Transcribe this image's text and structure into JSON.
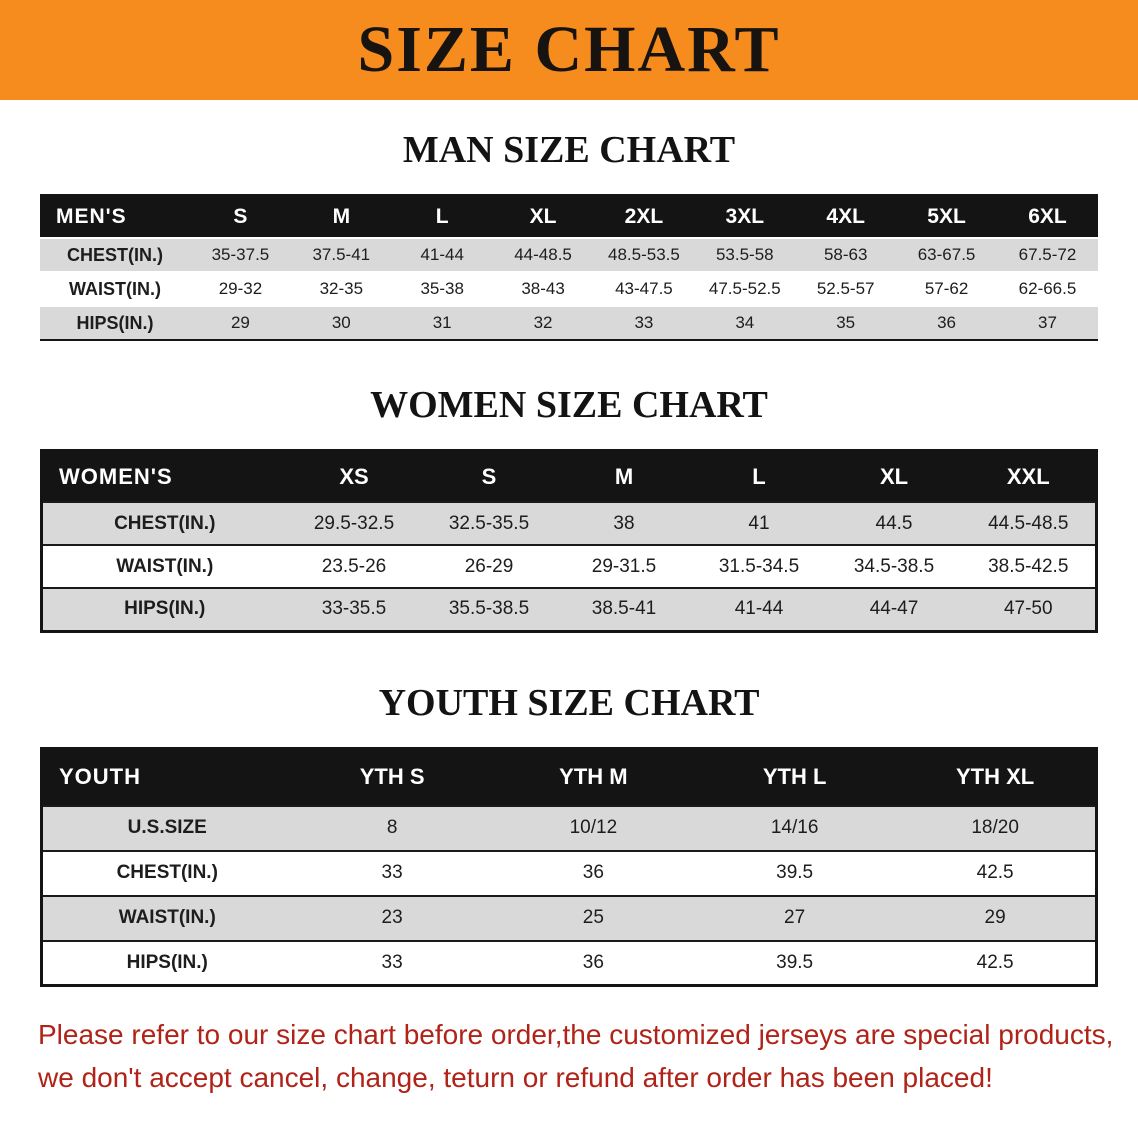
{
  "banner": {
    "title": "SIZE CHART",
    "bg_color": "#f68b1e"
  },
  "men": {
    "heading": "MAN SIZE CHART",
    "header": [
      "MEN'S",
      "S",
      "M",
      "L",
      "XL",
      "2XL",
      "3XL",
      "4XL",
      "5XL",
      "6XL"
    ],
    "rows": [
      {
        "label": "CHEST(IN.)",
        "values": [
          "35-37.5",
          "37.5-41",
          "41-44",
          "44-48.5",
          "48.5-53.5",
          "53.5-58",
          "58-63",
          "63-67.5",
          "67.5-72"
        ]
      },
      {
        "label": "WAIST(IN.)",
        "values": [
          "29-32",
          "32-35",
          "35-38",
          "38-43",
          "43-47.5",
          "47.5-52.5",
          "52.5-57",
          "57-62",
          "62-66.5"
        ]
      },
      {
        "label": "HIPS(IN.)",
        "values": [
          "29",
          "30",
          "31",
          "32",
          "33",
          "34",
          "35",
          "36",
          "37"
        ]
      }
    ]
  },
  "women": {
    "heading": "WOMEN SIZE CHART",
    "header": [
      "WOMEN'S",
      "XS",
      "S",
      "M",
      "L",
      "XL",
      "XXL"
    ],
    "rows": [
      {
        "label": "CHEST(IN.)",
        "values": [
          "29.5-32.5",
          "32.5-35.5",
          "38",
          "41",
          "44.5",
          "44.5-48.5"
        ]
      },
      {
        "label": "WAIST(IN.)",
        "values": [
          "23.5-26",
          "26-29",
          "29-31.5",
          "31.5-34.5",
          "34.5-38.5",
          "38.5-42.5"
        ]
      },
      {
        "label": "HIPS(IN.)",
        "values": [
          "33-35.5",
          "35.5-38.5",
          "38.5-41",
          "41-44",
          "44-47",
          "47-50"
        ]
      }
    ]
  },
  "youth": {
    "heading": "YOUTH SIZE CHART",
    "header": [
      "YOUTH",
      "YTH S",
      "YTH M",
      "YTH L",
      "YTH XL"
    ],
    "rows": [
      {
        "label": "U.S.SIZE",
        "values": [
          "8",
          "10/12",
          "14/16",
          "18/20"
        ]
      },
      {
        "label": "CHEST(IN.)",
        "values": [
          "33",
          "36",
          "39.5",
          "42.5"
        ]
      },
      {
        "label": "WAIST(IN.)",
        "values": [
          "23",
          "25",
          "27",
          "29"
        ]
      },
      {
        "label": "HIPS(IN.)",
        "values": [
          "33",
          "36",
          "39.5",
          "42.5"
        ]
      }
    ]
  },
  "disclaimer": {
    "line1": "Please refer to our size chart before order,the customized jerseys are special products,",
    "line2": "we don't accept cancel, change, teturn or refund after order has been placed!",
    "color": "#b02318"
  }
}
